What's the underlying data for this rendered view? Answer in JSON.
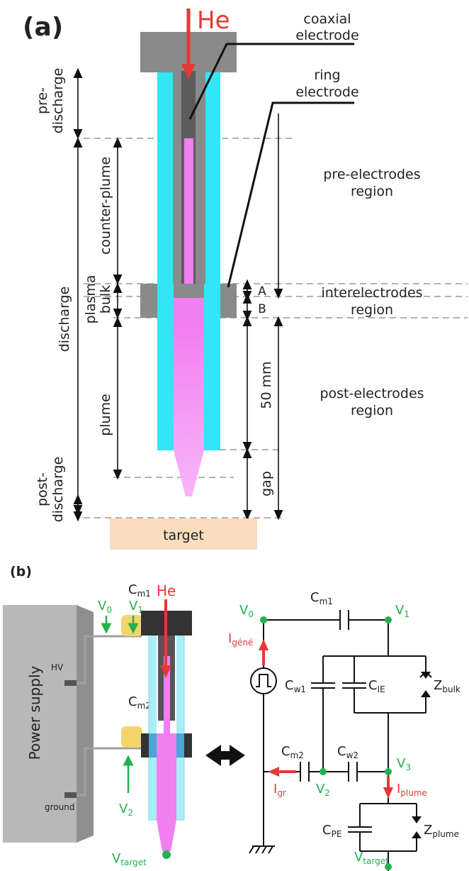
{
  "panel_a": {
    "label": "(a)",
    "gas": "He",
    "callouts": {
      "coaxial_1": "coaxial",
      "coaxial_2": "electrode",
      "ring_1": "ring",
      "ring_2": "electrode"
    },
    "phases": {
      "pre_1": "pre-",
      "pre_2": "discharge",
      "discharge": "discharge",
      "post_1": "post-",
      "post_2": "discharge"
    },
    "parts": {
      "counter_plume": "counter-plume",
      "plasma": "plasma",
      "bulk": "bulk",
      "plume": "plume"
    },
    "dims": {
      "A": "A",
      "B": "B",
      "mm": "50 mm",
      "gap": "gap"
    },
    "regions": {
      "pre_1": "pre-electrodes",
      "pre_2": "region",
      "inter_1": "interelectrodes",
      "inter_2": "region",
      "post_1": "post-electrodes",
      "post_2": "region"
    },
    "target": "target"
  },
  "panel_b": {
    "label": "(b)",
    "power_supply": "Power supply",
    "hv": "HV",
    "ground": "ground",
    "gas": "He",
    "cm1": {
      "base": "C",
      "sub": "m1"
    },
    "cm2": {
      "base": "C",
      "sub": "m2"
    },
    "v0": {
      "base": "V",
      "sub": "0"
    },
    "v1": {
      "base": "V",
      "sub": "1"
    },
    "v2": {
      "base": "V",
      "sub": "2"
    },
    "v3": {
      "base": "V",
      "sub": "3"
    },
    "vtarget": {
      "base": "V",
      "sub": "target"
    },
    "cw1": {
      "base": "C",
      "sub": "w1"
    },
    "cw2": {
      "base": "C",
      "sub": "w2"
    },
    "cie": {
      "base": "C",
      "sub": "IE"
    },
    "cpe": {
      "base": "C",
      "sub": "PE"
    },
    "zbulk": {
      "base": "Z",
      "sub": "bulk"
    },
    "zplume": {
      "base": "Z",
      "sub": "plume"
    },
    "igene": {
      "base": "I",
      "sub": "géné"
    },
    "igr": {
      "base": "I",
      "sub": "gr"
    },
    "iplume": {
      "base": "I",
      "sub": "plume"
    },
    "colors": {
      "voltage": "#22b14c",
      "current": "#e53935",
      "dielectric": "#33e5f5",
      "plasma": "#f07ff0",
      "electrode": "#8a8a8a",
      "target": "#fadcbe"
    }
  }
}
